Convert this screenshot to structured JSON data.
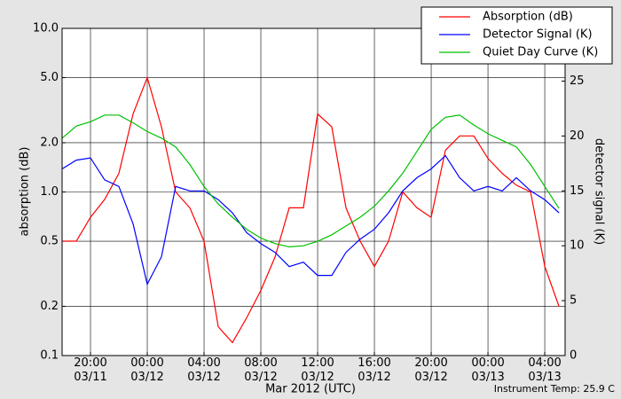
{
  "chart_data": {
    "type": "line",
    "xlabel": "Mar 2012 (UTC)",
    "ylabel": "absorption (dB)",
    "y2label": "detector signal (K)",
    "annotation": "Instrument Temp: 25.9 C",
    "ylog": true,
    "grid": true,
    "legend": "upper right",
    "x": [
      "2012-03-11T18:00",
      "2012-03-11T19:00",
      "2012-03-11T20:00",
      "2012-03-11T21:00",
      "2012-03-11T22:00",
      "2012-03-11T23:00",
      "2012-03-12T00:00",
      "2012-03-12T01:00",
      "2012-03-12T02:00",
      "2012-03-12T03:00",
      "2012-03-12T04:00",
      "2012-03-12T05:00",
      "2012-03-12T06:00",
      "2012-03-12T07:00",
      "2012-03-12T08:00",
      "2012-03-12T09:00",
      "2012-03-12T10:00",
      "2012-03-12T11:00",
      "2012-03-12T12:00",
      "2012-03-12T13:00",
      "2012-03-12T14:00",
      "2012-03-12T15:00",
      "2012-03-12T16:00",
      "2012-03-12T17:00",
      "2012-03-12T18:00",
      "2012-03-12T19:00",
      "2012-03-12T20:00",
      "2012-03-12T21:00",
      "2012-03-12T22:00",
      "2012-03-12T23:00",
      "2012-03-13T00:00",
      "2012-03-13T01:00",
      "2012-03-13T02:00",
      "2012-03-13T03:00",
      "2012-03-13T04:00",
      "2012-03-13T05:00"
    ],
    "xlim": [
      "2012-03-11T18:00",
      "2012-03-13T05:26"
    ],
    "xticks": [
      {
        "value": "2012-03-11T20:00",
        "label": "20:00\n03/11"
      },
      {
        "value": "2012-03-12T00:00",
        "label": "00:00\n03/12"
      },
      {
        "value": "2012-03-12T04:00",
        "label": "04:00\n03/12"
      },
      {
        "value": "2012-03-12T08:00",
        "label": "08:00\n03/12"
      },
      {
        "value": "2012-03-12T12:00",
        "label": "12:00\n03/12"
      },
      {
        "value": "2012-03-12T16:00",
        "label": "16:00\n03/12"
      },
      {
        "value": "2012-03-12T20:00",
        "label": "20:00\n03/12"
      },
      {
        "value": "2012-03-13T00:00",
        "label": "00:00\n03/13"
      },
      {
        "value": "2012-03-13T04:00",
        "label": "04:00\n03/13"
      }
    ],
    "ylim": [
      0.1,
      10
    ],
    "yticks": [
      0.1,
      0.2,
      0.5,
      {
        "value": 1,
        "label": "1.0"
      },
      {
        "value": 2,
        "label": "2.0"
      },
      {
        "value": 5,
        "label": "5.0"
      },
      {
        "value": 10,
        "label": "10.0"
      }
    ],
    "y2lim": [
      0,
      29.8
    ],
    "y2ticks": [
      0,
      5,
      10,
      15,
      20,
      25
    ],
    "series": [
      {
        "name": "Absorption (dB)",
        "color": "#ff0000",
        "values": [
          0.5,
          0.5,
          0.7,
          0.9,
          1.3,
          3.0,
          5.0,
          2.5,
          1.0,
          0.8,
          0.5,
          0.15,
          0.12,
          0.17,
          0.25,
          0.4,
          0.8,
          0.8,
          3.0,
          2.5,
          0.8,
          0.5,
          0.35,
          0.5,
          1.0,
          0.8,
          0.7,
          1.8,
          2.2,
          2.2,
          1.6,
          1.3,
          1.1,
          1.0,
          0.35,
          0.2
        ]
      },
      {
        "name": "Detector Signal (K)",
        "color": "#0000ff",
        "axis": "y2",
        "values": [
          17,
          17.8,
          18,
          16,
          15.4,
          12,
          6.5,
          9,
          15.4,
          15,
          15,
          14.2,
          13,
          11.2,
          10.2,
          9.4,
          8.1,
          8.5,
          7.3,
          7.3,
          9.4,
          10.6,
          11.5,
          13,
          15,
          16.2,
          17,
          18.2,
          16.2,
          15,
          15.4,
          15,
          16.2,
          15,
          14.2,
          13
        ]
      },
      {
        "name": "Quiet Day Curve (K)",
        "color": "#00c000",
        "axis": "y2",
        "values": [
          19.8,
          20.9,
          21.3,
          21.9,
          21.9,
          21.2,
          20.4,
          19.8,
          19,
          17.4,
          15.4,
          13.8,
          12.6,
          11.5,
          10.7,
          10.2,
          9.9,
          10,
          10.4,
          11,
          11.8,
          12.6,
          13.6,
          15,
          16.6,
          18.6,
          20.6,
          21.7,
          21.9,
          21,
          20.2,
          19.6,
          19,
          17.4,
          15.4,
          13.4
        ]
      }
    ]
  }
}
